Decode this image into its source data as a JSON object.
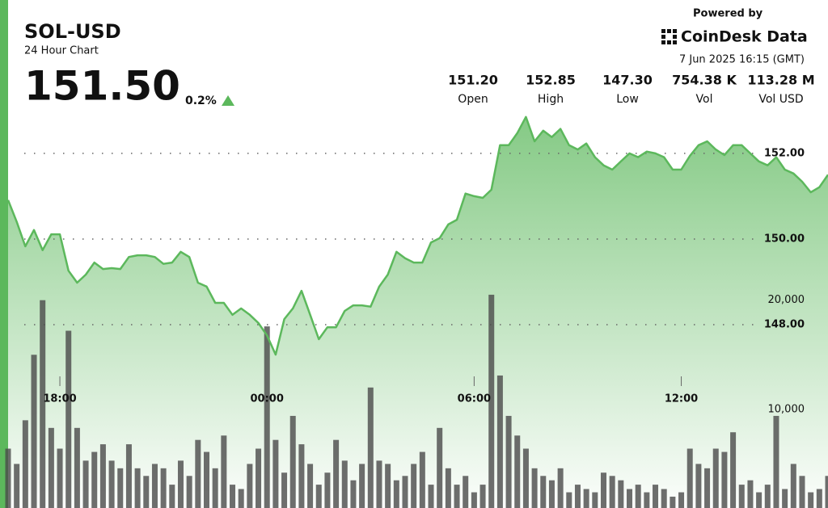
{
  "header": {
    "powered_by": "Powered by",
    "brand": "CoinDesk Data",
    "timestamp": "7 Jun 2025 16:15 (GMT)",
    "price": "151.50",
    "change": "0.2%"
  },
  "stats": [
    {
      "value": "151.20",
      "label": "Open"
    },
    {
      "value": "152.85",
      "label": "High"
    },
    {
      "value": "147.30",
      "label": "Low"
    },
    {
      "value": "754.38 K",
      "label": "Vol"
    },
    {
      "value": "113.28 M",
      "label": "Vol USD"
    }
  ],
  "chart_data": {
    "type": "line",
    "title": "SOL-USD",
    "subtitle": "24 Hour Chart",
    "categories": [
      null,
      null,
      null,
      null,
      null,
      null,
      "18:00",
      null,
      null,
      null,
      null,
      null,
      null,
      null,
      null,
      null,
      null,
      null,
      null,
      null,
      null,
      null,
      null,
      null,
      null,
      null,
      null,
      null,
      null,
      null,
      "00:00",
      null,
      null,
      null,
      null,
      null,
      null,
      null,
      null,
      null,
      null,
      null,
      null,
      null,
      null,
      null,
      null,
      null,
      null,
      null,
      null,
      null,
      null,
      null,
      "06:00",
      null,
      null,
      null,
      null,
      null,
      null,
      null,
      null,
      null,
      null,
      null,
      null,
      null,
      null,
      null,
      null,
      null,
      null,
      null,
      null,
      null,
      null,
      null,
      "12:00",
      null,
      null,
      null,
      null,
      null,
      null,
      null,
      null,
      null,
      null,
      null,
      null,
      null,
      null,
      null,
      null,
      null
    ],
    "series": [
      {
        "color": "#5cb85c",
        "values": [
          150.91,
          150.4,
          149.83,
          150.21,
          149.74,
          150.11,
          150.11,
          149.26,
          148.98,
          149.17,
          149.45,
          149.3,
          149.32,
          149.3,
          149.58,
          149.62,
          149.62,
          149.58,
          149.42,
          149.45,
          149.7,
          149.58,
          148.98,
          148.89,
          148.51,
          148.51,
          148.23,
          148.38,
          148.23,
          148.04,
          147.75,
          147.3,
          148.13,
          148.38,
          148.79,
          148.23,
          147.66,
          147.94,
          147.94,
          148.32,
          148.45,
          148.45,
          148.42,
          148.89,
          149.17,
          149.7,
          149.55,
          149.45,
          149.45,
          149.92,
          150.02,
          150.34,
          150.45,
          151.06,
          151.0,
          150.96,
          151.15,
          152.19,
          152.19,
          152.47,
          152.85,
          152.28,
          152.53,
          152.38,
          152.57,
          152.19,
          152.09,
          152.23,
          151.91,
          151.72,
          151.62,
          151.81,
          152.0,
          151.91,
          152.04,
          152.0,
          151.91,
          151.62,
          151.62,
          151.94,
          152.19,
          152.28,
          152.09,
          151.96,
          152.19,
          152.19,
          152.0,
          151.81,
          151.72,
          151.91,
          151.62,
          151.53,
          151.34,
          151.09,
          151.21,
          151.5
        ]
      },
      {
        "type": "bar",
        "axis": "y2",
        "color": "#4a4a4a",
        "values": [
          6400,
          5000,
          9000,
          15000,
          20000,
          8300,
          6400,
          17200,
          8300,
          5300,
          6100,
          6800,
          5300,
          4600,
          6800,
          4600,
          3900,
          5000,
          4600,
          3100,
          5300,
          3900,
          7200,
          6100,
          4600,
          7600,
          3100,
          2700,
          5000,
          6400,
          17600,
          7200,
          4200,
          9400,
          6800,
          5000,
          3100,
          4200,
          7200,
          5300,
          3500,
          5000,
          12000,
          5300,
          5000,
          3500,
          3900,
          5000,
          6100,
          3100,
          8300,
          4600,
          3100,
          3900,
          2400,
          3100,
          20500,
          13100,
          9400,
          7600,
          6400,
          4600,
          3900,
          3500,
          4600,
          2400,
          3100,
          2700,
          2400,
          4200,
          3900,
          3500,
          2700,
          3100,
          2400,
          3100,
          2700,
          2000,
          2400,
          6400,
          5000,
          4600,
          6400,
          6100,
          7900,
          3100,
          3500,
          2400,
          3100,
          9400,
          2700,
          5000,
          3900,
          2400,
          2700,
          3900
        ]
      }
    ],
    "ylim": [
      143.72,
      155.58
    ],
    "yticks": [
      {
        "value": 148,
        "label": "148.00"
      },
      {
        "value": 150,
        "label": "150.00"
      },
      {
        "value": 152,
        "label": "152.00"
      }
    ],
    "y2lim": [
      0,
      47500
    ],
    "y2ticks": [
      {
        "value": 10000,
        "label": "10,000"
      },
      {
        "value": 20000,
        "label": "20,000"
      }
    ],
    "grid": true
  }
}
